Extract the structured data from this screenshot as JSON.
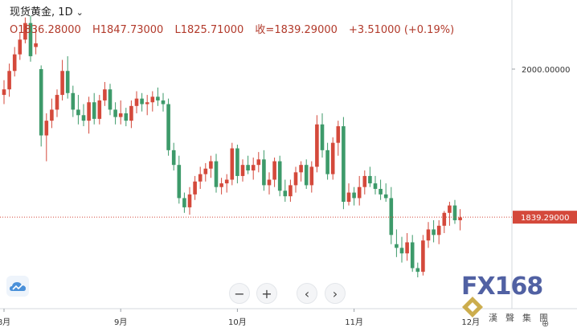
{
  "header": {
    "symbol": "现货黄金",
    "separator": ",",
    "interval": "1D",
    "open": "O1836.28000",
    "high": "H1847.73000",
    "low": "L1825.71000",
    "close": "收=1839.29000",
    "change": "+3.51000 (+0.19%)"
  },
  "colors": {
    "up": "#d4493b",
    "down": "#3d9a6a",
    "price_line": "#d4493b",
    "text_red": "#b23a2b"
  },
  "nav": {
    "zoom_out": "−",
    "zoom_in": "+",
    "scroll_left": "‹",
    "scroll_right": "›"
  },
  "watermark": {
    "brand": "FX168",
    "subtitle": "漢聲集團"
  },
  "chart_data": {
    "type": "candlestick",
    "title": "",
    "xlabel": "",
    "ylabel": "",
    "ylim": [
      1740,
      2075
    ],
    "price_axis_labels": [
      "2000.00000"
    ],
    "last_price_label": "1839.29000",
    "last_price": 1839.29,
    "x_ticks": [
      {
        "label": "8月",
        "index": 0
      },
      {
        "label": "9月",
        "index": 22
      },
      {
        "label": "10月",
        "index": 44
      },
      {
        "label": "11月",
        "index": 66
      },
      {
        "label": "12月",
        "index": 88
      }
    ],
    "candles": [
      [
        1972,
        1988,
        1962,
        1978
      ],
      [
        1978,
        2006,
        1970,
        1998
      ],
      [
        1998,
        2024,
        1992,
        2016
      ],
      [
        2016,
        2040,
        2010,
        2032
      ],
      [
        2032,
        2056,
        2028,
        2050
      ],
      [
        2050,
        2058,
        2008,
        2014
      ],
      [
        2024,
        2044,
        2016,
        2028
      ],
      [
        2000,
        2004,
        1916,
        1928
      ],
      [
        1928,
        1952,
        1900,
        1944
      ],
      [
        1944,
        1968,
        1936,
        1956
      ],
      [
        1956,
        1978,
        1948,
        1972
      ],
      [
        1972,
        2010,
        1966,
        1998
      ],
      [
        1998,
        2014,
        1968,
        1974
      ],
      [
        1974,
        1982,
        1948,
        1956
      ],
      [
        1956,
        1972,
        1940,
        1950
      ],
      [
        1950,
        1962,
        1938,
        1944
      ],
      [
        1944,
        1970,
        1930,
        1964
      ],
      [
        1964,
        1974,
        1940,
        1946
      ],
      [
        1946,
        1972,
        1940,
        1966
      ],
      [
        1966,
        1986,
        1960,
        1978
      ],
      [
        1978,
        1984,
        1950,
        1956
      ],
      [
        1956,
        1964,
        1940,
        1948
      ],
      [
        1948,
        1966,
        1940,
        1952
      ],
      [
        1952,
        1958,
        1938,
        1944
      ],
      [
        1944,
        1966,
        1936,
        1960
      ],
      [
        1960,
        1976,
        1952,
        1968
      ],
      [
        1968,
        1974,
        1954,
        1962
      ],
      [
        1962,
        1972,
        1950,
        1964
      ],
      [
        1964,
        1976,
        1954,
        1970
      ],
      [
        1970,
        1980,
        1960,
        1966
      ],
      [
        1966,
        1974,
        1954,
        1962
      ],
      [
        1962,
        1968,
        1906,
        1912
      ],
      [
        1912,
        1920,
        1890,
        1896
      ],
      [
        1896,
        1906,
        1854,
        1860
      ],
      [
        1860,
        1866,
        1844,
        1850
      ],
      [
        1850,
        1872,
        1842,
        1864
      ],
      [
        1864,
        1884,
        1858,
        1878
      ],
      [
        1878,
        1894,
        1870,
        1886
      ],
      [
        1886,
        1898,
        1878,
        1892
      ],
      [
        1892,
        1906,
        1882,
        1900
      ],
      [
        1900,
        1908,
        1866,
        1872
      ],
      [
        1872,
        1882,
        1864,
        1876
      ],
      [
        1876,
        1886,
        1866,
        1880
      ],
      [
        1880,
        1920,
        1874,
        1914
      ],
      [
        1914,
        1918,
        1876,
        1884
      ],
      [
        1884,
        1902,
        1878,
        1896
      ],
      [
        1896,
        1906,
        1886,
        1890
      ],
      [
        1890,
        1904,
        1880,
        1896
      ],
      [
        1896,
        1910,
        1888,
        1902
      ],
      [
        1902,
        1912,
        1868,
        1874
      ],
      [
        1874,
        1888,
        1864,
        1880
      ],
      [
        1880,
        1904,
        1872,
        1900
      ],
      [
        1900,
        1906,
        1862,
        1868
      ],
      [
        1868,
        1880,
        1856,
        1862
      ],
      [
        1862,
        1880,
        1856,
        1874
      ],
      [
        1874,
        1894,
        1866,
        1888
      ],
      [
        1888,
        1900,
        1878,
        1896
      ],
      [
        1896,
        1902,
        1870,
        1874
      ],
      [
        1874,
        1900,
        1866,
        1894
      ],
      [
        1894,
        1950,
        1888,
        1940
      ],
      [
        1940,
        1952,
        1904,
        1912
      ],
      [
        1912,
        1920,
        1880,
        1886
      ],
      [
        1886,
        1926,
        1880,
        1920
      ],
      [
        1920,
        1944,
        1906,
        1938
      ],
      [
        1938,
        1948,
        1848,
        1856
      ],
      [
        1856,
        1876,
        1852,
        1866
      ],
      [
        1866,
        1872,
        1852,
        1860
      ],
      [
        1860,
        1884,
        1852,
        1872
      ],
      [
        1872,
        1890,
        1864,
        1884
      ],
      [
        1884,
        1894,
        1872,
        1876
      ],
      [
        1876,
        1884,
        1864,
        1870
      ],
      [
        1870,
        1880,
        1858,
        1864
      ],
      [
        1864,
        1876,
        1856,
        1860
      ],
      [
        1860,
        1872,
        1810,
        1820
      ],
      [
        1810,
        1826,
        1796,
        1806
      ],
      [
        1806,
        1818,
        1790,
        1800
      ],
      [
        1800,
        1822,
        1792,
        1812
      ],
      [
        1812,
        1820,
        1780,
        1784
      ],
      [
        1784,
        1790,
        1774,
        1780
      ],
      [
        1780,
        1820,
        1776,
        1814
      ],
      [
        1814,
        1834,
        1806,
        1826
      ],
      [
        1826,
        1836,
        1812,
        1820
      ],
      [
        1820,
        1836,
        1810,
        1830
      ],
      [
        1830,
        1846,
        1822,
        1844
      ],
      [
        1844,
        1856,
        1830,
        1852
      ],
      [
        1852,
        1858,
        1832,
        1836
      ],
      [
        1836,
        1848,
        1825,
        1839
      ]
    ]
  }
}
